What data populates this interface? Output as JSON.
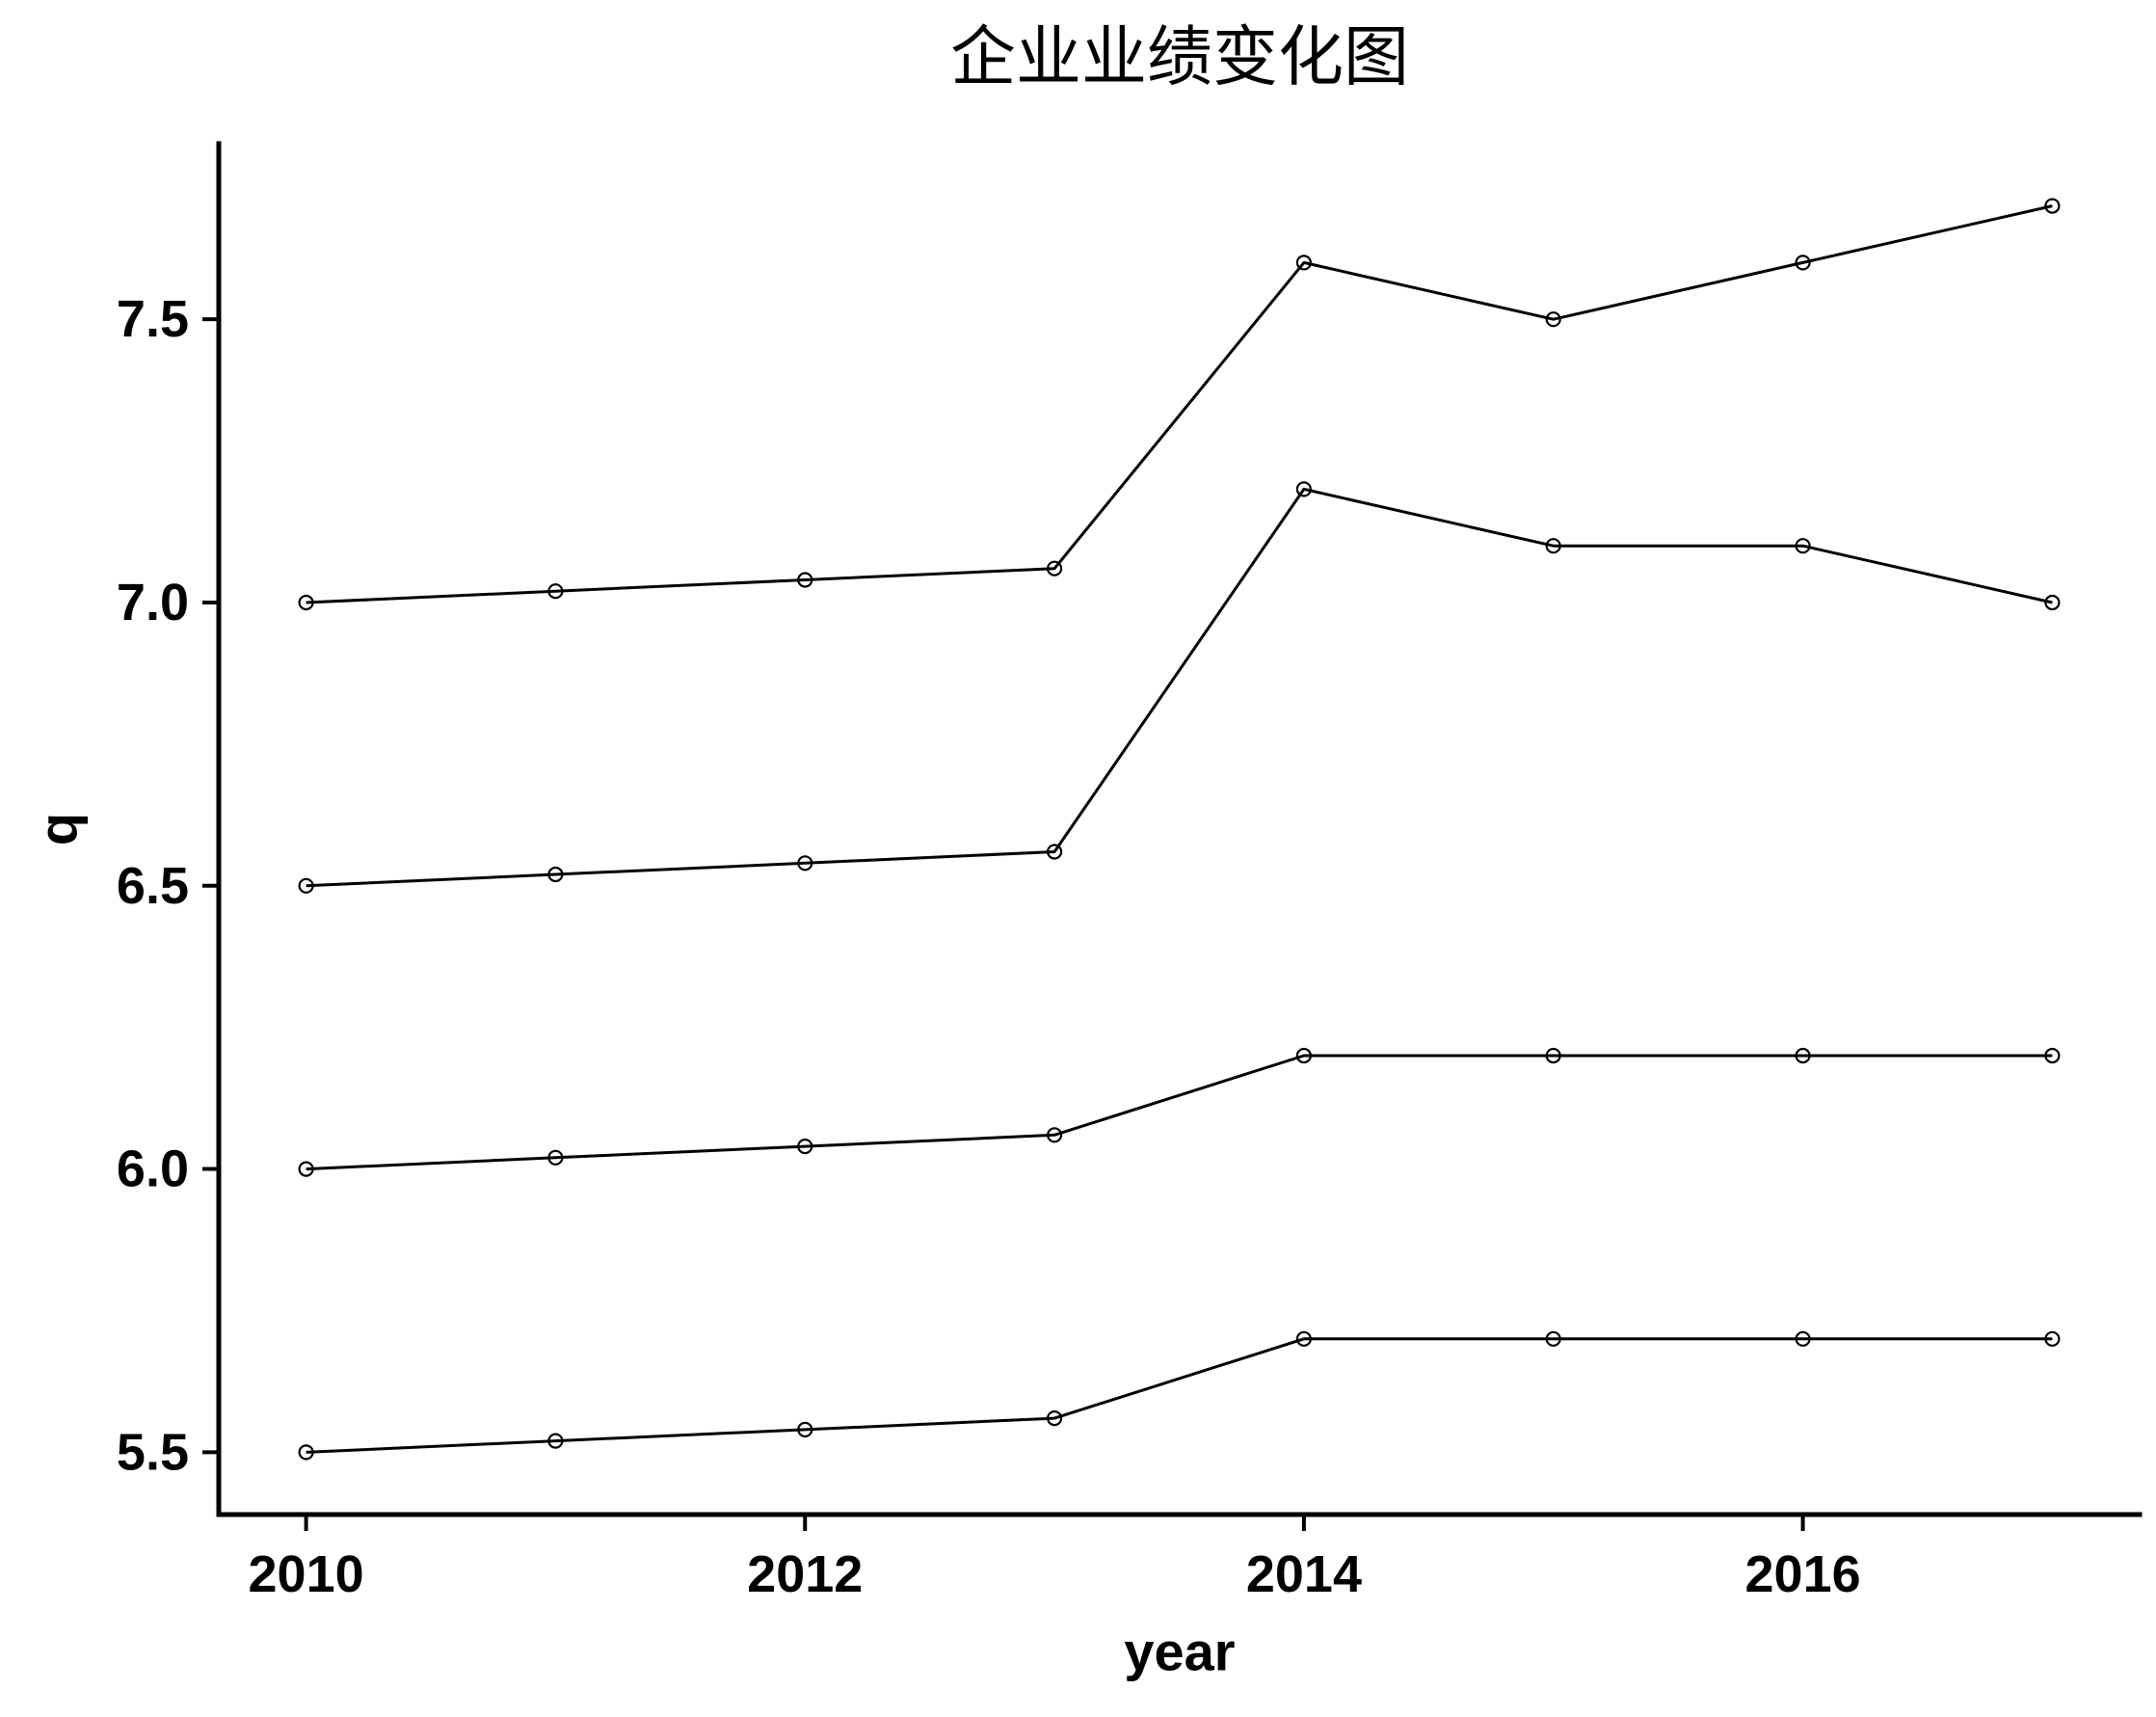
{
  "chart_data": {
    "type": "line",
    "title": "企业业绩变化图",
    "xlabel": "year",
    "ylabel": "q",
    "x": [
      2010,
      2011,
      2012,
      2013,
      2014,
      2015,
      2016,
      2017
    ],
    "series": [
      {
        "values": [
          7.0,
          7.02,
          7.04,
          7.06,
          7.6,
          7.5,
          7.6,
          7.7
        ]
      },
      {
        "values": [
          6.5,
          6.52,
          6.54,
          6.56,
          7.2,
          7.1,
          7.1,
          7.0
        ]
      },
      {
        "values": [
          6.0,
          6.02,
          6.04,
          6.06,
          6.2,
          6.2,
          6.2,
          6.2
        ]
      },
      {
        "values": [
          5.5,
          5.52,
          5.54,
          5.56,
          5.7,
          5.7,
          5.7,
          5.7
        ]
      }
    ],
    "xticks": [
      2010,
      2012,
      2014,
      2016
    ],
    "yticks": [
      "5.5",
      "6.0",
      "6.5",
      "7.0",
      "7.5"
    ],
    "xlim": [
      2009.65,
      2017.35
    ],
    "ylim": [
      5.39,
      7.81
    ],
    "grid": false,
    "legend": "none",
    "line_color": "#000000",
    "marker": "open-circle"
  }
}
